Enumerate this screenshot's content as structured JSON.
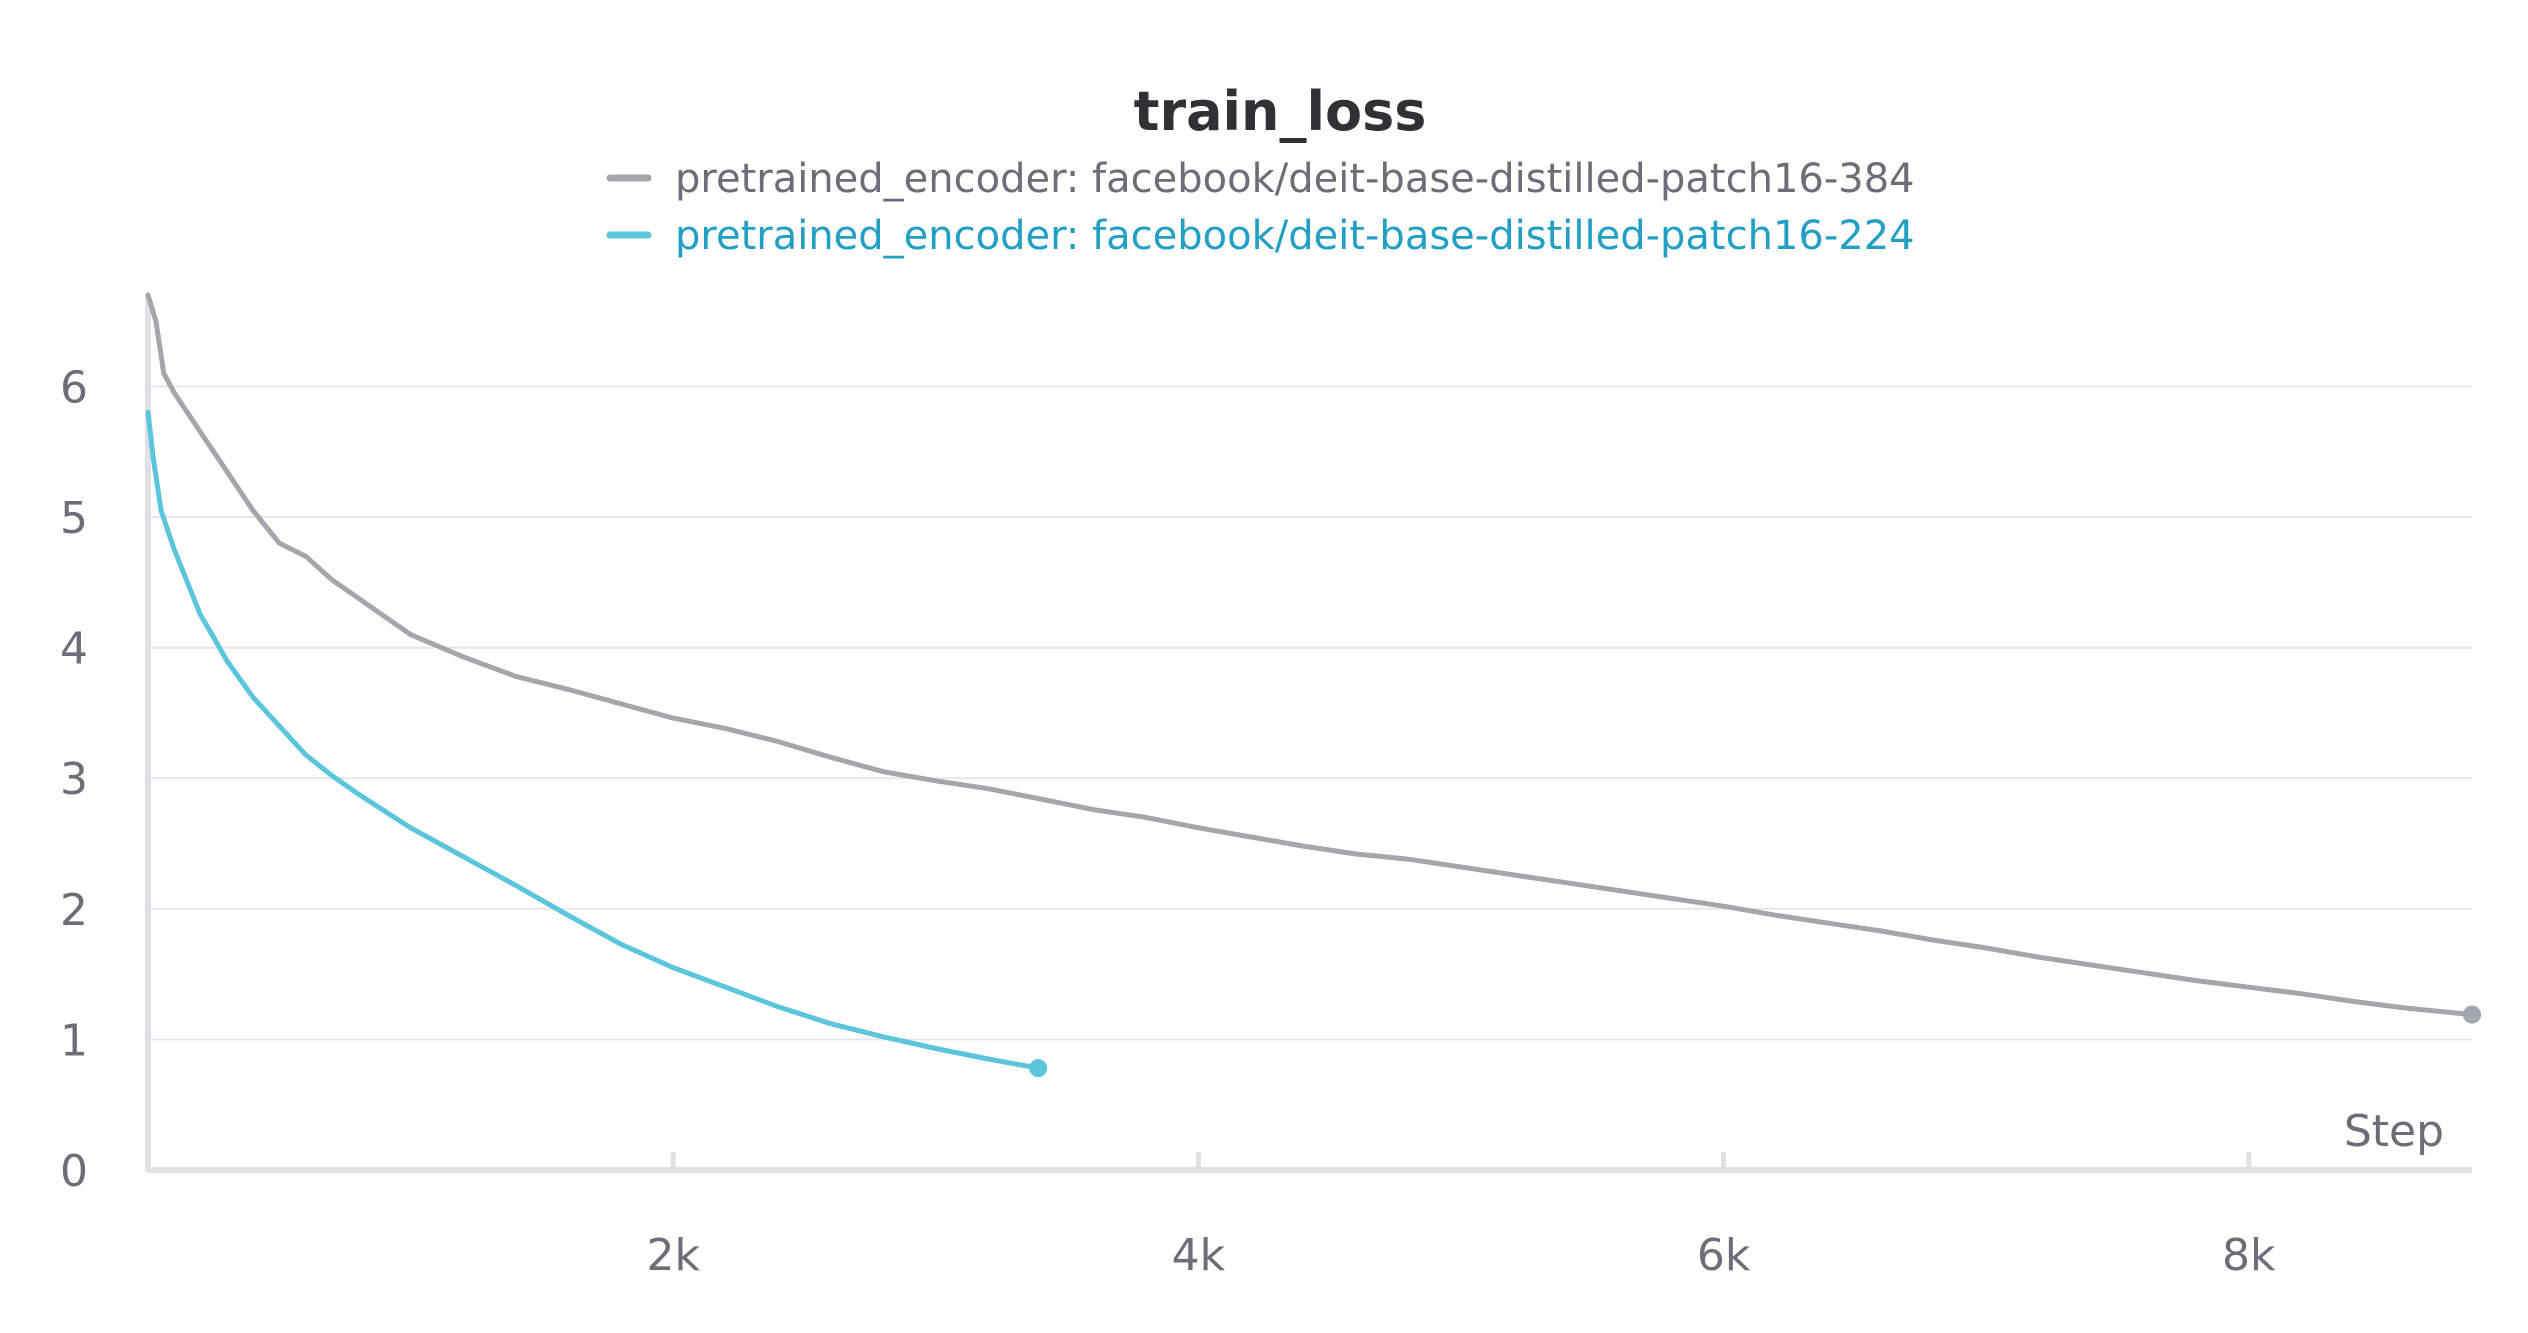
{
  "chart_data": {
    "type": "line",
    "title": "train_loss",
    "xlabel": "Step",
    "ylabel": "",
    "xlim": [
      0,
      8850
    ],
    "ylim": [
      0,
      6.7
    ],
    "x_ticks": [
      {
        "value": 2000,
        "label": "2k"
      },
      {
        "value": 4000,
        "label": "4k"
      },
      {
        "value": 6000,
        "label": "6k"
      },
      {
        "value": 8000,
        "label": "8k"
      }
    ],
    "y_ticks": [
      {
        "value": 0,
        "label": "0"
      },
      {
        "value": 1,
        "label": "1"
      },
      {
        "value": 2,
        "label": "2"
      },
      {
        "value": 3,
        "label": "3"
      },
      {
        "value": 4,
        "label": "4"
      },
      {
        "value": 5,
        "label": "5"
      },
      {
        "value": 6,
        "label": "6"
      }
    ],
    "grid": true,
    "legend_position": "top-center",
    "series": [
      {
        "name": "pretrained_encoder: facebook/deit-base-distilled-patch16-384",
        "color": "#a2a6ad",
        "legend_color": "#6b6e78",
        "end_marker": true,
        "x": [
          0,
          30,
          60,
          100,
          150,
          200,
          300,
          400,
          500,
          600,
          700,
          800,
          1000,
          1200,
          1400,
          1600,
          1800,
          2000,
          2200,
          2400,
          2600,
          2800,
          3000,
          3200,
          3400,
          3600,
          3800,
          4000,
          4200,
          4400,
          4600,
          4800,
          5000,
          5200,
          5400,
          5600,
          5800,
          6000,
          6200,
          6400,
          6600,
          6800,
          7000,
          7200,
          7400,
          7600,
          7800,
          8000,
          8200,
          8400,
          8600,
          8850
        ],
        "y": [
          6.7,
          6.5,
          6.1,
          5.95,
          5.8,
          5.65,
          5.35,
          5.05,
          4.8,
          4.7,
          4.52,
          4.38,
          4.1,
          3.93,
          3.78,
          3.68,
          3.57,
          3.46,
          3.38,
          3.28,
          3.16,
          3.05,
          2.98,
          2.92,
          2.84,
          2.76,
          2.7,
          2.62,
          2.55,
          2.48,
          2.42,
          2.38,
          2.32,
          2.26,
          2.2,
          2.14,
          2.08,
          2.02,
          1.95,
          1.89,
          1.83,
          1.76,
          1.7,
          1.63,
          1.57,
          1.51,
          1.45,
          1.4,
          1.35,
          1.29,
          1.24,
          1.19
        ]
      },
      {
        "name": "pretrained_encoder: facebook/deit-base-distilled-patch16-224",
        "color": "#5bc5db",
        "legend_color": "#229fc4",
        "end_marker": true,
        "x": [
          0,
          20,
          50,
          100,
          150,
          200,
          250,
          300,
          400,
          500,
          600,
          700,
          800,
          900,
          1000,
          1200,
          1400,
          1600,
          1800,
          2000,
          2200,
          2400,
          2600,
          2800,
          3000,
          3200,
          3390
        ],
        "y": [
          5.8,
          5.45,
          5.05,
          4.75,
          4.5,
          4.25,
          4.08,
          3.9,
          3.62,
          3.4,
          3.18,
          3.02,
          2.88,
          2.75,
          2.62,
          2.4,
          2.18,
          1.95,
          1.73,
          1.55,
          1.4,
          1.25,
          1.12,
          1.02,
          0.93,
          0.85,
          0.78
        ]
      }
    ]
  }
}
